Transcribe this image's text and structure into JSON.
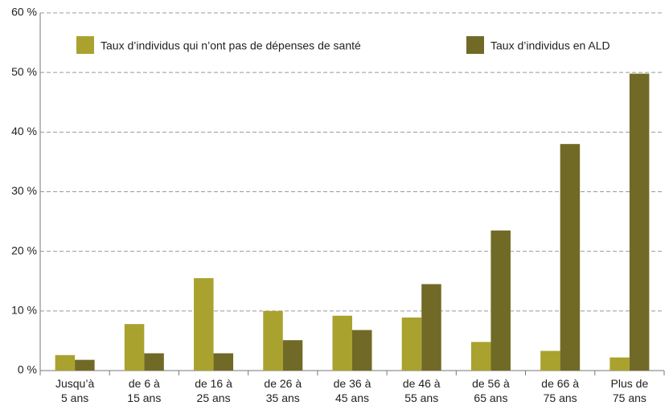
{
  "chart_data": {
    "type": "bar",
    "categories": [
      "Jusqu’à\n5 ans",
      "de 6 à\n15 ans",
      "de 16 à\n25 ans",
      "de 26 à\n35 ans",
      "de 36 à\n45 ans",
      "de 46 à\n55 ans",
      "de 56 à\n65 ans",
      "de 66 à\n75 ans",
      "Plus de\n75 ans"
    ],
    "series": [
      {
        "name": "Taux d’individus qui n’ont pas de dépenses de santé",
        "color": "#a9a22e",
        "values": [
          2.6,
          7.8,
          15.5,
          10,
          9.2,
          8.9,
          4.8,
          3.3,
          2.2
        ]
      },
      {
        "name": "Taux d’individus en ALD",
        "color": "#706a26",
        "values": [
          1.8,
          2.9,
          2.9,
          5.1,
          6.8,
          14.5,
          23.5,
          38,
          49.8
        ]
      }
    ],
    "ylim": [
      0,
      60
    ],
    "yticks": [
      {
        "value": 0,
        "label": "0 %"
      },
      {
        "value": 10,
        "label": "10 %"
      },
      {
        "value": 20,
        "label": "20 %"
      },
      {
        "value": 30,
        "label": "30 %"
      },
      {
        "value": 40,
        "label": "40 %"
      },
      {
        "value": 50,
        "label": "50 %"
      },
      {
        "value": 60,
        "label": "60 %"
      }
    ],
    "grid": true
  }
}
